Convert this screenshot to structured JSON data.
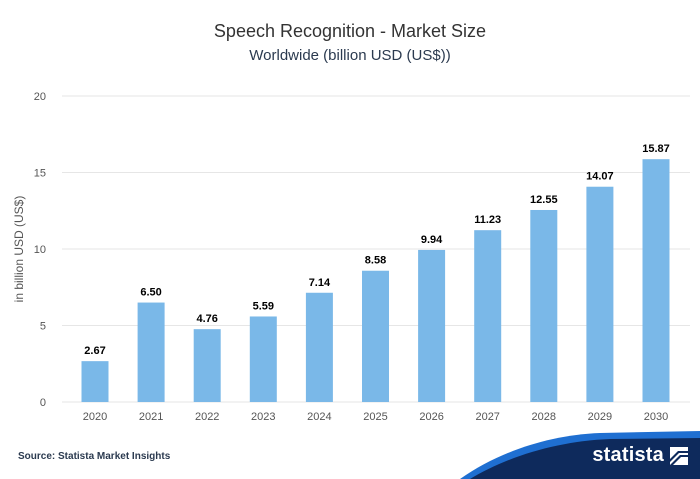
{
  "header": {
    "title": "Speech Recognition - Market Size",
    "subtitle": "Worldwide (billion USD (US$))"
  },
  "footer": {
    "source": "Source: Statista Market Insights",
    "brand": "statista",
    "brand_icon": "statista-logo-icon"
  },
  "colors": {
    "bar": "#7ab8e8",
    "grid": "#e6e6e6",
    "axis_text": "#555555",
    "label_text": "#000000",
    "brand_wave": "#0e2a5c",
    "brand_wave_light": "#1f6fd1"
  },
  "chart_data": {
    "type": "bar",
    "title": "Speech Recognition - Market Size",
    "subtitle": "Worldwide (billion USD (US$))",
    "xlabel": "",
    "ylabel": "in billion USD (US$)",
    "ylim": [
      0,
      20
    ],
    "yticks": [
      "0",
      "5",
      "10",
      "15",
      "20"
    ],
    "grid": true,
    "categories": [
      "2020",
      "2021",
      "2022",
      "2023",
      "2024",
      "2025",
      "2026",
      "2027",
      "2028",
      "2029",
      "2030"
    ],
    "values": [
      2.67,
      6.5,
      4.76,
      5.59,
      7.14,
      8.58,
      9.94,
      11.23,
      12.55,
      14.07,
      15.87
    ],
    "value_labels": [
      "2.67",
      "6.50",
      "4.76",
      "5.59",
      "7.14",
      "8.58",
      "9.94",
      "11.23",
      "12.55",
      "14.07",
      "15.87"
    ]
  }
}
